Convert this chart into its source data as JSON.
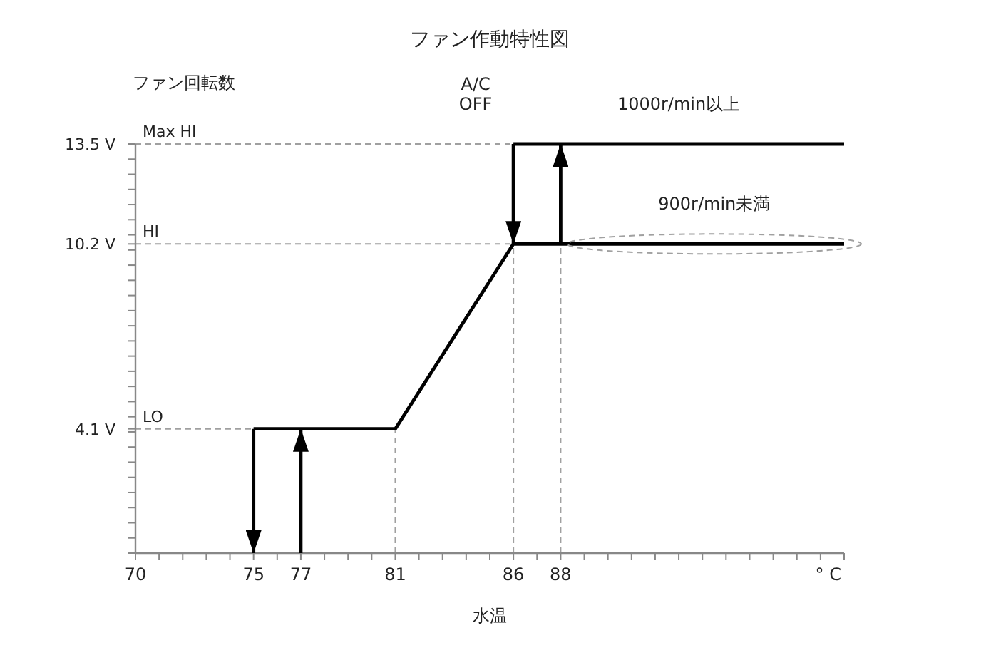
{
  "chart_data": {
    "type": "line",
    "title": "ファン作動特性図",
    "ylabel": "ファン回転数",
    "xlabel": "水温",
    "xlim": [
      70,
      100
    ],
    "ylim": [
      0,
      13.5
    ],
    "xticks": [
      70,
      {
        "value": 71,
        "label": null
      },
      {
        "value": 72,
        "label": null
      },
      {
        "value": 73,
        "label": null
      },
      {
        "value": 74,
        "label": null
      },
      75,
      {
        "value": 76,
        "label": null
      },
      77,
      {
        "value": 78,
        "label": null
      },
      {
        "value": 79,
        "label": null
      },
      {
        "value": 80,
        "label": null
      },
      81,
      {
        "value": 82,
        "label": null
      },
      {
        "value": 83,
        "label": null
      },
      {
        "value": 84,
        "label": null
      },
      {
        "value": 85,
        "label": null
      },
      86,
      {
        "value": 87,
        "label": null
      },
      88,
      {
        "value": 89,
        "label": null
      },
      {
        "value": 90,
        "label": null
      },
      {
        "value": 91,
        "label": null
      },
      {
        "value": 92,
        "label": null
      },
      {
        "value": 93,
        "label": null
      },
      {
        "value": 94,
        "label": null
      },
      {
        "value": 95,
        "label": null
      },
      {
        "value": 96,
        "label": null
      },
      {
        "value": 97,
        "label": null
      },
      {
        "value": 98,
        "label": null
      },
      {
        "value": 99,
        "label": null
      },
      {
        "value": 100,
        "label": null
      }
    ],
    "yticks": [
      {
        "value": 0,
        "label": null
      },
      {
        "value": 0.5,
        "label": null
      },
      {
        "value": 1,
        "label": null
      },
      {
        "value": 1.5,
        "label": null
      },
      {
        "value": 2,
        "label": null
      },
      {
        "value": 2.5,
        "label": null
      },
      {
        "value": 3,
        "label": null
      },
      {
        "value": 3.5,
        "label": null
      },
      {
        "value": 4,
        "label": null
      },
      {
        "value": 4.1,
        "label": "4.1 V"
      },
      {
        "value": 4.5,
        "label": null
      },
      {
        "value": 5,
        "label": null
      },
      {
        "value": 5.5,
        "label": null
      },
      {
        "value": 6,
        "label": null
      },
      {
        "value": 6.5,
        "label": null
      },
      {
        "value": 7,
        "label": null
      },
      {
        "value": 7.5,
        "label": null
      },
      {
        "value": 8,
        "label": null
      },
      {
        "value": 8.5,
        "label": null
      },
      {
        "value": 9,
        "label": null
      },
      {
        "value": 9.5,
        "label": null
      },
      {
        "value": 10,
        "label": null
      },
      {
        "value": 10.2,
        "label": "10.2 V"
      },
      {
        "value": 10.5,
        "label": null
      },
      {
        "value": 11,
        "label": null
      },
      {
        "value": 11.5,
        "label": null
      },
      {
        "value": 12,
        "label": null
      },
      {
        "value": 12.5,
        "label": null
      },
      {
        "value": 13,
        "label": null
      },
      {
        "value": 13.5,
        "label": "13.5 V"
      }
    ],
    "series": [
      {
        "x": [
          75,
          81,
          86,
          100
        ],
        "values": [
          4.1,
          4.1,
          10.2,
          10.2
        ],
        "color": "#000000"
      },
      {
        "x": [
          86,
          100
        ],
        "values": [
          13.5,
          13.5
        ],
        "color": "#000000"
      },
      {
        "x": [
          75,
          75
        ],
        "values": [
          4.1,
          0
        ],
        "color": "#000000"
      },
      {
        "x": [
          77,
          77
        ],
        "values": [
          0,
          4.1
        ],
        "color": "#000000"
      },
      {
        "x": [
          86,
          86
        ],
        "values": [
          13.5,
          10.2
        ],
        "color": "#000000"
      },
      {
        "x": [
          88,
          88
        ],
        "values": [
          10.2,
          13.5
        ],
        "color": "#000000"
      }
    ],
    "ref_lines": [
      {
        "axis": "y",
        "value": 13.5,
        "label": "Max HI",
        "color": "#a0a0a0",
        "line_style": "dashed"
      },
      {
        "axis": "y",
        "value": 10.2,
        "label": "HI",
        "color": "#a0a0a0",
        "line_style": "dashed"
      },
      {
        "axis": "y",
        "value": 4.1,
        "label": "LO",
        "color": "#a0a0a0",
        "line_style": "dashed"
      },
      {
        "axis": "x",
        "value": 81,
        "color": "#a0a0a0",
        "line_style": "dashed"
      },
      {
        "axis": "x",
        "value": 86,
        "color": "#a0a0a0",
        "line_style": "dashed"
      },
      {
        "axis": "x",
        "value": 88,
        "color": "#a0a0a0",
        "line_style": "dashed"
      }
    ],
    "annotations": [
      {
        "text": "A/C\nOFF",
        "x": 84.4,
        "y": 13.5
      },
      {
        "text": "1000r/min以上",
        "x": 93,
        "y": 13.5
      },
      {
        "text": "900r/min未満",
        "x": 94.5,
        "y": 10.2
      },
      "° C"
    ]
  }
}
